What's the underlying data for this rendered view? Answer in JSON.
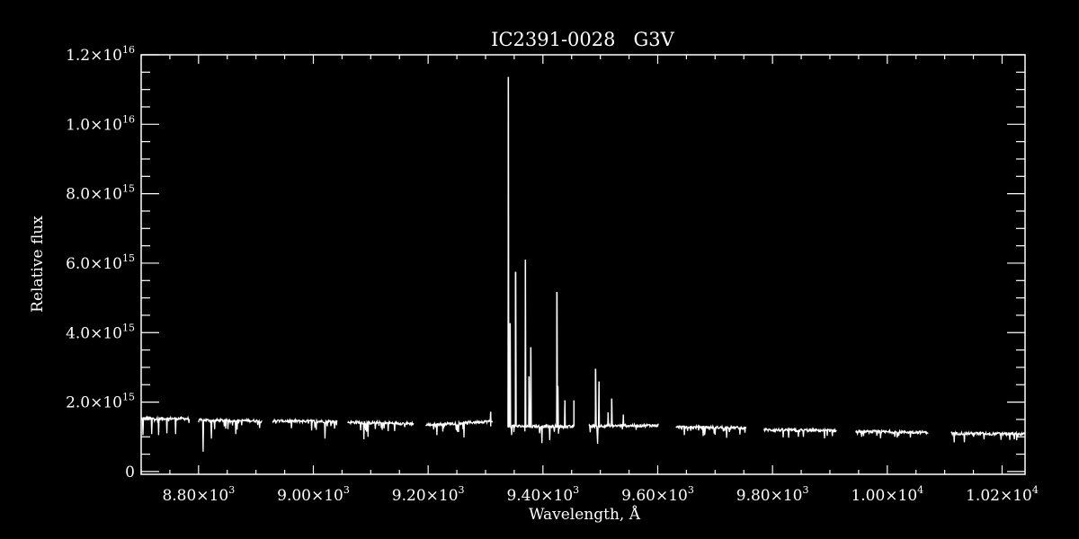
{
  "chart_data": {
    "type": "line",
    "title": "IC2391-0028   G3V",
    "xlabel": "Wavelength, Å",
    "ylabel": "Relative flux",
    "xlim": [
      8700,
      10240
    ],
    "ylim": [
      -80000000000000,
      12000000000000000
    ],
    "grid": false,
    "colors": {
      "background": "#000000",
      "line": "#ffffff",
      "axes": "#ffffff"
    },
    "x_ticks": [
      {
        "value": 8800,
        "mantissa": "8.80",
        "exp": "3"
      },
      {
        "value": 9000,
        "mantissa": "9.00",
        "exp": "3"
      },
      {
        "value": 9200,
        "mantissa": "9.20",
        "exp": "3"
      },
      {
        "value": 9400,
        "mantissa": "9.40",
        "exp": "3"
      },
      {
        "value": 9600,
        "mantissa": "9.60",
        "exp": "3"
      },
      {
        "value": 9800,
        "mantissa": "9.80",
        "exp": "3"
      },
      {
        "value": 10000,
        "mantissa": "1.00",
        "exp": "4"
      },
      {
        "value": 10200,
        "mantissa": "1.02",
        "exp": "4"
      }
    ],
    "y_ticks": [
      {
        "value": 0,
        "mantissa": "0",
        "exp": ""
      },
      {
        "value": 2000000000000000.0,
        "mantissa": "2.0",
        "exp": "15"
      },
      {
        "value": 4000000000000000.0,
        "mantissa": "4.0",
        "exp": "15"
      },
      {
        "value": 6000000000000000.0,
        "mantissa": "6.0",
        "exp": "15"
      },
      {
        "value": 8000000000000000.0,
        "mantissa": "8.0",
        "exp": "15"
      },
      {
        "value": 1e+16,
        "mantissa": "1.0",
        "exp": "16"
      },
      {
        "value": 1.2e+16,
        "mantissa": "1.2",
        "exp": "16"
      }
    ],
    "segments": [
      {
        "x": [
          8700,
          8784
        ],
        "continuum": [
          1530000000000000.0,
          1520000000000000.0
        ]
      },
      {
        "x": [
          8800,
          8911
        ],
        "continuum": [
          1480000000000000.0,
          1460000000000000.0
        ]
      },
      {
        "x": [
          8929,
          9041
        ],
        "continuum": [
          1460000000000000.0,
          1440000000000000.0
        ]
      },
      {
        "x": [
          9060,
          9175
        ],
        "continuum": [
          1420000000000000.0,
          1380000000000000.0
        ]
      },
      {
        "x": [
          9196,
          9312
        ],
        "continuum": [
          1340000000000000.0,
          1450000000000000.0
        ]
      },
      {
        "x": [
          9339,
          9453
        ],
        "continuum": [
          1310000000000000.0,
          1290000000000000.0
        ]
      },
      {
        "x": [
          9480,
          9602
        ],
        "continuum": [
          1310000000000000.0,
          1330000000000000.0
        ]
      },
      {
        "x": [
          9632,
          9754
        ],
        "continuum": [
          1280000000000000.0,
          1260000000000000.0
        ]
      },
      {
        "x": [
          9785,
          9912
        ],
        "continuum": [
          1200000000000000.0,
          1180000000000000.0
        ]
      },
      {
        "x": [
          9945,
          10072
        ],
        "continuum": [
          1150000000000000.0,
          1130000000000000.0
        ]
      },
      {
        "x": [
          10111,
          10240
        ],
        "continuum": [
          1100000000000000.0,
          1080000000000000.0
        ]
      }
    ],
    "emission_lines": [
      {
        "x": 9339.7,
        "y": 1.136e+16
      },
      {
        "x": 9342.8,
        "y": 4270000000000000.0
      },
      {
        "x": 9352.2,
        "y": 5750000000000000.0
      },
      {
        "x": 9369.5,
        "y": 6100000000000000.0
      },
      {
        "x": 9375.7,
        "y": 2740000000000000.0
      },
      {
        "x": 9378.9,
        "y": 3580000000000000.0
      },
      {
        "x": 9424.3,
        "y": 5170000000000000.0
      },
      {
        "x": 9425.8,
        "y": 2460000000000000.0
      },
      {
        "x": 9438.4,
        "y": 2050000000000000.0
      },
      {
        "x": 9454.0,
        "y": 2050000000000000.0
      },
      {
        "x": 9491.6,
        "y": 2960000000000000.0
      },
      {
        "x": 9497.9,
        "y": 2590000000000000.0
      },
      {
        "x": 9513.5,
        "y": 1700000000000000.0
      },
      {
        "x": 9519.8,
        "y": 2100000000000000.0
      },
      {
        "x": 9540.2,
        "y": 1640000000000000.0
      },
      {
        "x": 9309.0,
        "y": 1720000000000000.0
      }
    ],
    "absorption_lines": [
      {
        "x": 8703,
        "y": 1050000000000000.0
      },
      {
        "x": 8718,
        "y": 1080000000000000.0
      },
      {
        "x": 8730,
        "y": 1050000000000000.0
      },
      {
        "x": 8745,
        "y": 1100000000000000.0
      },
      {
        "x": 8760,
        "y": 1080000000000000.0
      },
      {
        "x": 8808,
        "y": 570000000000000.0
      },
      {
        "x": 8822,
        "y": 950000000000000.0
      },
      {
        "x": 8865,
        "y": 1080000000000000.0
      },
      {
        "x": 9020,
        "y": 950000000000000.0
      },
      {
        "x": 9005,
        "y": 1200000000000000.0
      },
      {
        "x": 9088,
        "y": 930000000000000.0
      },
      {
        "x": 9095,
        "y": 1000000000000000.0
      },
      {
        "x": 9120,
        "y": 1200000000000000.0
      },
      {
        "x": 9215,
        "y": 1050000000000000.0
      },
      {
        "x": 9262,
        "y": 980000000000000.0
      },
      {
        "x": 9345,
        "y": 1050000000000000.0
      },
      {
        "x": 9398,
        "y": 820000000000000.0
      },
      {
        "x": 9412,
        "y": 900000000000000.0
      },
      {
        "x": 9495,
        "y": 800000000000000.0
      },
      {
        "x": 9646,
        "y": 1050000000000000.0
      },
      {
        "x": 9720,
        "y": 970000000000000.0
      },
      {
        "x": 9845,
        "y": 1000000000000000.0
      },
      {
        "x": 9955,
        "y": 1000000000000000.0
      },
      {
        "x": 10040,
        "y": 980000000000000.0
      },
      {
        "x": 10150,
        "y": 1000000000000000.0
      },
      {
        "x": 10225,
        "y": 900000000000000.0
      }
    ]
  }
}
